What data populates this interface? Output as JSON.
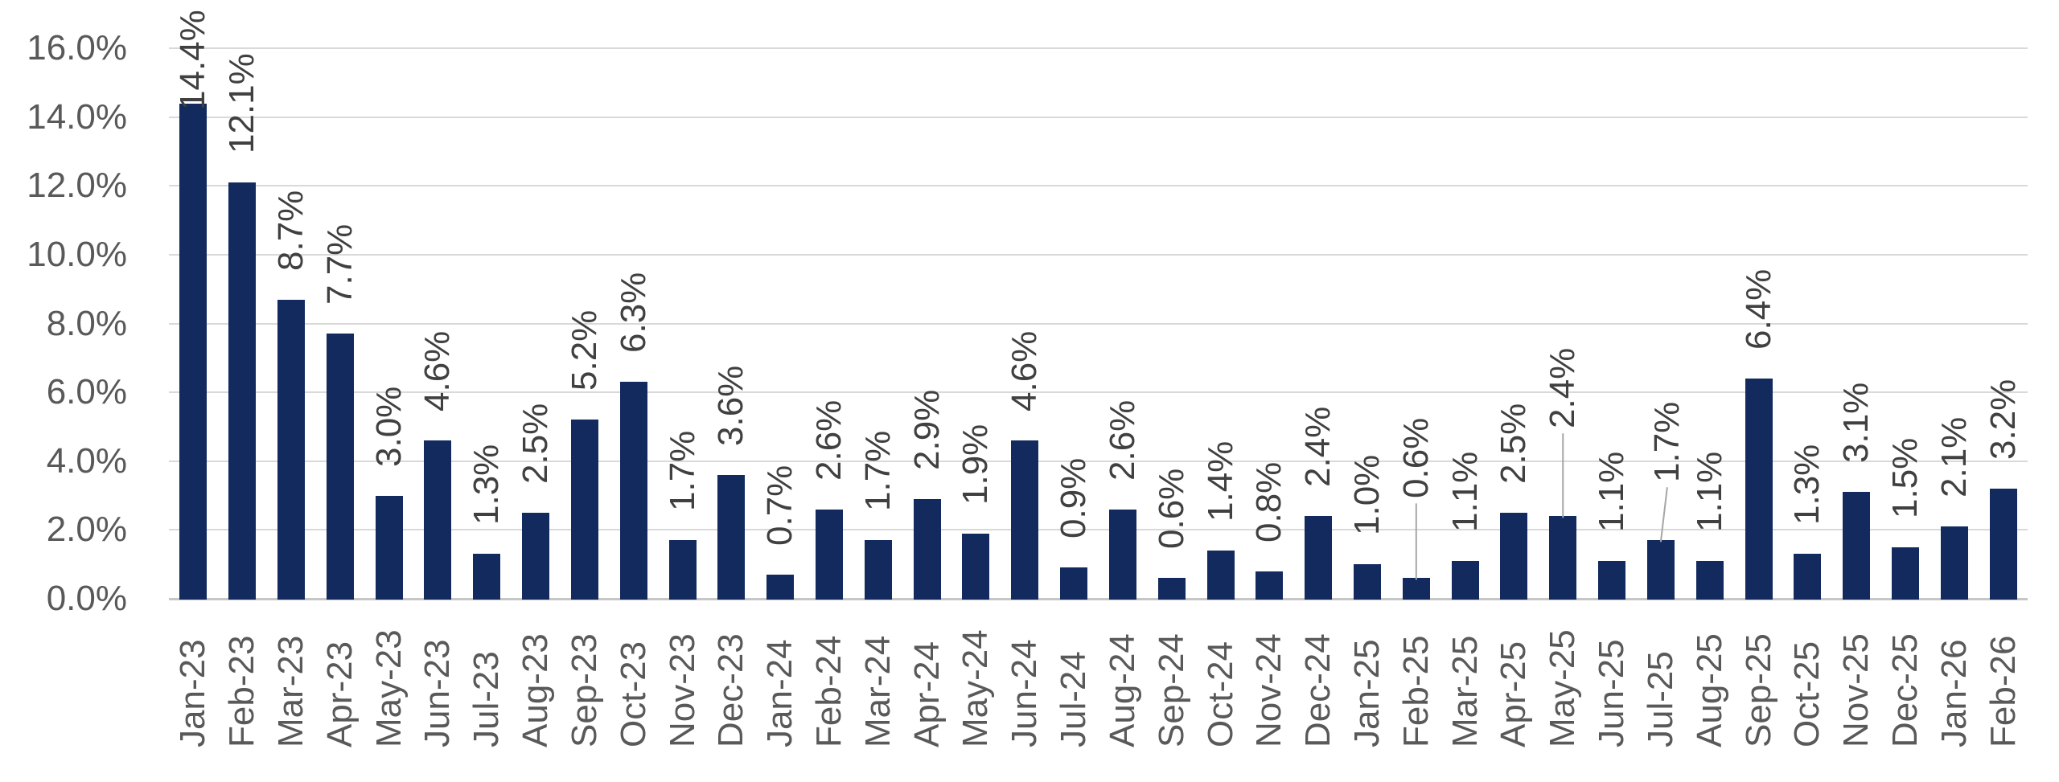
{
  "chart_data": {
    "type": "bar",
    "title": "",
    "xlabel": "",
    "ylabel": "",
    "categories": [
      "Jan-23",
      "Feb-23",
      "Mar-23",
      "Apr-23",
      "May-23",
      "Jun-23",
      "Jul-23",
      "Aug-23",
      "Sep-23",
      "Oct-23",
      "Nov-23",
      "Dec-23",
      "Jan-24",
      "Feb-24",
      "Mar-24",
      "Apr-24",
      "May-24",
      "Jun-24",
      "Jul-24",
      "Aug-24",
      "Sep-24",
      "Oct-24",
      "Nov-24",
      "Dec-24",
      "Jan-25",
      "Feb-25",
      "Mar-25",
      "Apr-25",
      "May-25",
      "Jun-25",
      "Jul-25",
      "Aug-25",
      "Sep-25",
      "Oct-25",
      "Nov-25",
      "Dec-25",
      "Jan-26",
      "Feb-26"
    ],
    "values": [
      14.4,
      12.1,
      8.7,
      7.7,
      3.0,
      4.6,
      1.3,
      2.5,
      5.2,
      6.3,
      1.7,
      3.6,
      0.7,
      2.6,
      1.7,
      2.9,
      1.9,
      4.6,
      0.9,
      2.6,
      0.6,
      1.4,
      0.8,
      2.4,
      1.0,
      0.6,
      1.1,
      2.5,
      2.4,
      1.1,
      1.7,
      1.1,
      6.4,
      1.3,
      3.1,
      1.5,
      2.1,
      3.2
    ],
    "data_labels": [
      "14.4%",
      "12.1%",
      "8.7%",
      "7.7%",
      "3.0%",
      "4.6%",
      "1.3%",
      "2.5%",
      "5.2%",
      "6.3%",
      "1.7%",
      "3.6%",
      "0.7%",
      "2.6%",
      "1.7%",
      "2.9%",
      "1.9%",
      "4.6%",
      "0.9%",
      "2.6%",
      "0.6%",
      "1.4%",
      "0.8%",
      "2.4%",
      "1.0%",
      "0.6%",
      "1.1%",
      "2.5%",
      "2.4%",
      "1.1%",
      "1.7%",
      "1.1%",
      "6.4%",
      "1.3%",
      "3.1%",
      "1.5%",
      "2.1%",
      "3.2%"
    ],
    "y_ticks": [
      "0.0%",
      "2.0%",
      "4.0%",
      "6.0%",
      "8.0%",
      "10.0%",
      "12.0%",
      "14.0%",
      "16.0%"
    ],
    "ylim": [
      0,
      16
    ],
    "y_tick_step": 2,
    "grid": true,
    "legend": false,
    "x_label_rotation_deg": 90,
    "data_label_rotation_deg": 90,
    "callouts": [
      {
        "category": "Feb-25",
        "raise": 63,
        "dx": 0
      },
      {
        "category": "May-25",
        "raise": 73,
        "dx": 0
      },
      {
        "category": "Jul-25",
        "raise": 36,
        "dx": 8
      }
    ]
  },
  "colors": {
    "bar": "#122A5E",
    "gridline": "#D9D9D9",
    "axis_line": "#C6C6C6",
    "axis_text": "#595959",
    "data_label_text": "#404040",
    "leader_line": "#A6A6A6",
    "background": "#FFFFFF"
  }
}
